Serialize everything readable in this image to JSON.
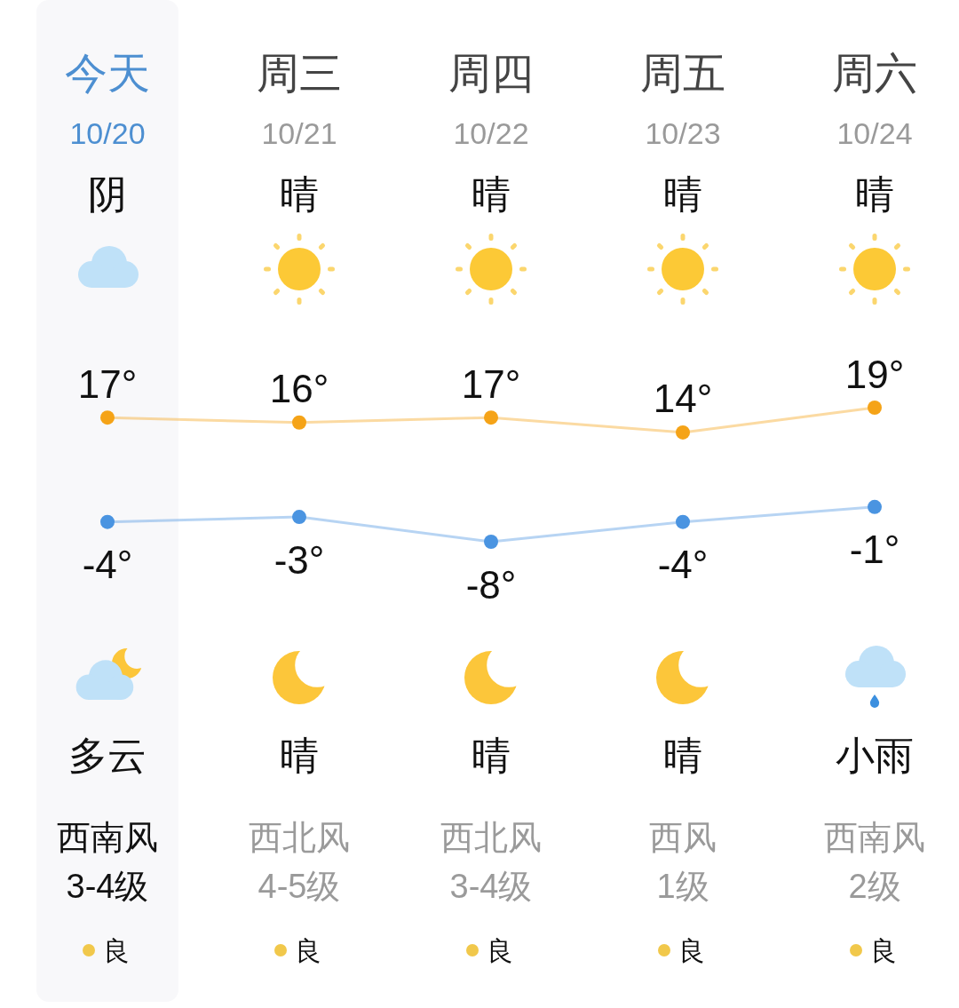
{
  "chart_data": {
    "type": "line",
    "categories": [
      "今天",
      "周三",
      "周四",
      "周五",
      "周六"
    ],
    "series": [
      {
        "color": "#f5a317",
        "values": [
          17,
          16,
          17,
          14,
          19
        ],
        "value_labels": [
          "17°",
          "16°",
          "17°",
          "14°",
          "19°"
        ]
      },
      {
        "color": "#4a94e1",
        "values": [
          -4,
          -3,
          -8,
          -4,
          -1
        ],
        "value_labels": [
          "-4°",
          "-3°",
          "-8°",
          "-4°",
          "-1°"
        ]
      }
    ],
    "marker": "circle",
    "line_style": "solid",
    "tick_labels": "x",
    "bands": [
      {
        "axis": "x",
        "from": "今天",
        "to": "今天",
        "color": "#f8f8fa"
      }
    ],
    "annotations": [
      "10/20",
      "10/21",
      "10/22",
      "10/23",
      "10/24",
      "阴",
      "晴",
      "晴",
      "晴",
      "晴",
      "多云",
      "晴",
      "晴",
      "晴",
      "小雨",
      "西南风",
      "西北风",
      "西北风",
      "西风",
      "西南风",
      "3-4级",
      "4-5级",
      "3-4级",
      "1级",
      "2级",
      "良",
      "良",
      "良",
      "良",
      "良"
    ]
  }
}
